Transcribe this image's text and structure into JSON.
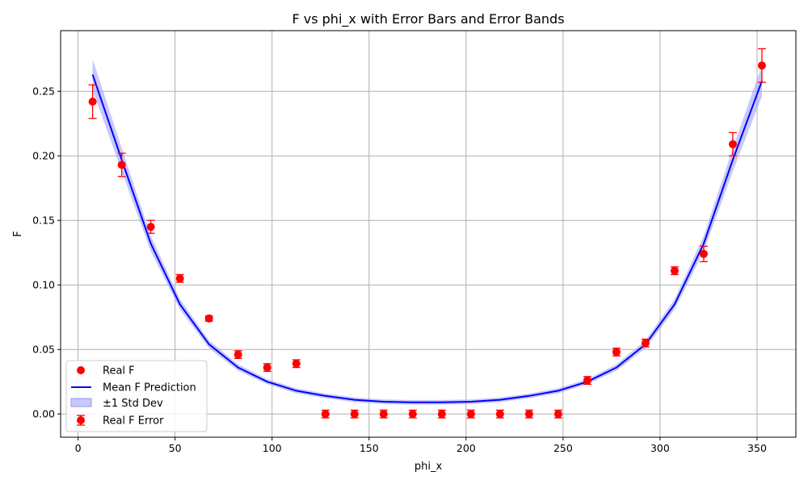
{
  "chart_data": {
    "type": "line",
    "title": "F vs phi_x with Error Bars and Error Bands",
    "xlabel": "phi_x",
    "ylabel": "F",
    "xlim": [
      -9,
      370
    ],
    "ylim": [
      -0.018,
      0.297
    ],
    "xticks": [
      0,
      50,
      100,
      150,
      200,
      250,
      300,
      350
    ],
    "xtick_labels": [
      "0",
      "50",
      "100",
      "150",
      "200",
      "250",
      "300",
      "350"
    ],
    "yticks": [
      0.0,
      0.05,
      0.1,
      0.15,
      0.2,
      0.25
    ],
    "ytick_labels": [
      "0.00",
      "0.05",
      "0.10",
      "0.15",
      "0.20",
      "0.25"
    ],
    "grid": true,
    "legend_position": "lower-left",
    "colors": {
      "real_points": "#ff0000",
      "mean_line": "#0000ff",
      "band_fill": "#9a9af5",
      "grid": "#b0b0b0"
    },
    "series": [
      {
        "name": "Real F",
        "kind": "scatter",
        "x": [
          7.5,
          22.5,
          37.5,
          52.5,
          67.5,
          82.5,
          97.5,
          112.5,
          127.5,
          142.5,
          157.5,
          172.5,
          187.5,
          202.5,
          217.5,
          232.5,
          247.5,
          262.5,
          277.5,
          292.5,
          307.5,
          322.5,
          337.5,
          352.5
        ],
        "values": [
          0.242,
          0.193,
          0.145,
          0.105,
          0.074,
          0.046,
          0.036,
          0.039,
          0.0,
          0.0,
          0.0,
          0.0,
          0.0,
          0.0,
          0.0,
          0.0,
          0.0,
          0.026,
          0.048,
          0.055,
          0.111,
          0.124,
          0.209,
          0.27
        ],
        "errors": [
          0.013,
          0.009,
          0.005,
          0.003,
          0.002,
          0.003,
          0.003,
          0.003,
          0.003,
          0.003,
          0.003,
          0.003,
          0.003,
          0.003,
          0.003,
          0.003,
          0.003,
          0.003,
          0.003,
          0.003,
          0.003,
          0.006,
          0.009,
          0.013
        ]
      },
      {
        "name": "Mean F Prediction",
        "kind": "line",
        "x": [
          7.5,
          22.5,
          37.5,
          52.5,
          67.5,
          82.5,
          97.5,
          112.5,
          127.5,
          142.5,
          157.5,
          172.5,
          187.5,
          202.5,
          217.5,
          232.5,
          247.5,
          262.5,
          277.5,
          292.5,
          307.5,
          322.5,
          337.5,
          352.5
        ],
        "values": [
          0.263,
          0.197,
          0.132,
          0.085,
          0.054,
          0.036,
          0.025,
          0.018,
          0.014,
          0.011,
          0.0095,
          0.009,
          0.009,
          0.0095,
          0.011,
          0.014,
          0.018,
          0.025,
          0.036,
          0.054,
          0.085,
          0.132,
          0.197,
          0.258
        ]
      },
      {
        "name": "±1 Std Dev",
        "kind": "band",
        "x": [
          7.5,
          22.5,
          37.5,
          52.5,
          67.5,
          82.5,
          97.5,
          112.5,
          127.5,
          142.5,
          157.5,
          172.5,
          187.5,
          202.5,
          217.5,
          232.5,
          247.5,
          262.5,
          277.5,
          292.5,
          307.5,
          322.5,
          337.5,
          352.5
        ],
        "std": [
          0.012,
          0.009,
          0.006,
          0.004,
          0.003,
          0.0025,
          0.002,
          0.002,
          0.0018,
          0.0018,
          0.0018,
          0.0018,
          0.0018,
          0.0018,
          0.0018,
          0.0018,
          0.002,
          0.002,
          0.0025,
          0.003,
          0.004,
          0.006,
          0.009,
          0.012
        ]
      }
    ],
    "legend": [
      "Real F",
      "Mean F Prediction",
      "±1 Std Dev",
      "Real F Error"
    ]
  }
}
